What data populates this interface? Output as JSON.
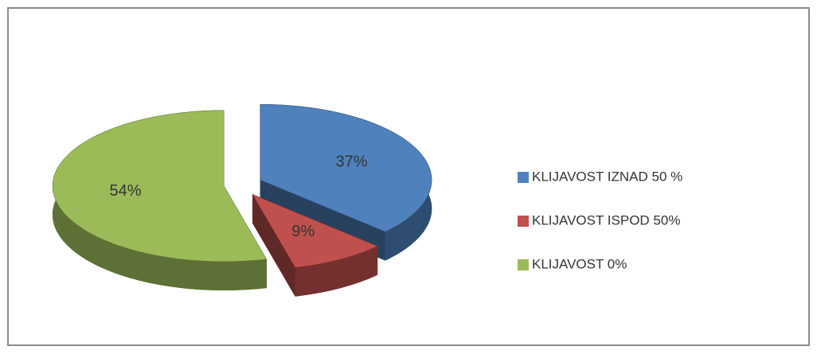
{
  "chart_data": {
    "type": "pie",
    "categories": [
      "KLIJAVOST IZNAD 50 %",
      "KLIJAVOST ISPOD 50%",
      "KLIJAVOST 0%"
    ],
    "values": [
      37,
      9,
      54
    ],
    "value_labels": [
      "37%",
      "9%",
      "54%"
    ],
    "colors": [
      "#4f81bd",
      "#c0504d",
      "#9bbb59"
    ],
    "three_d": true,
    "exploded": true,
    "legend": "right"
  }
}
